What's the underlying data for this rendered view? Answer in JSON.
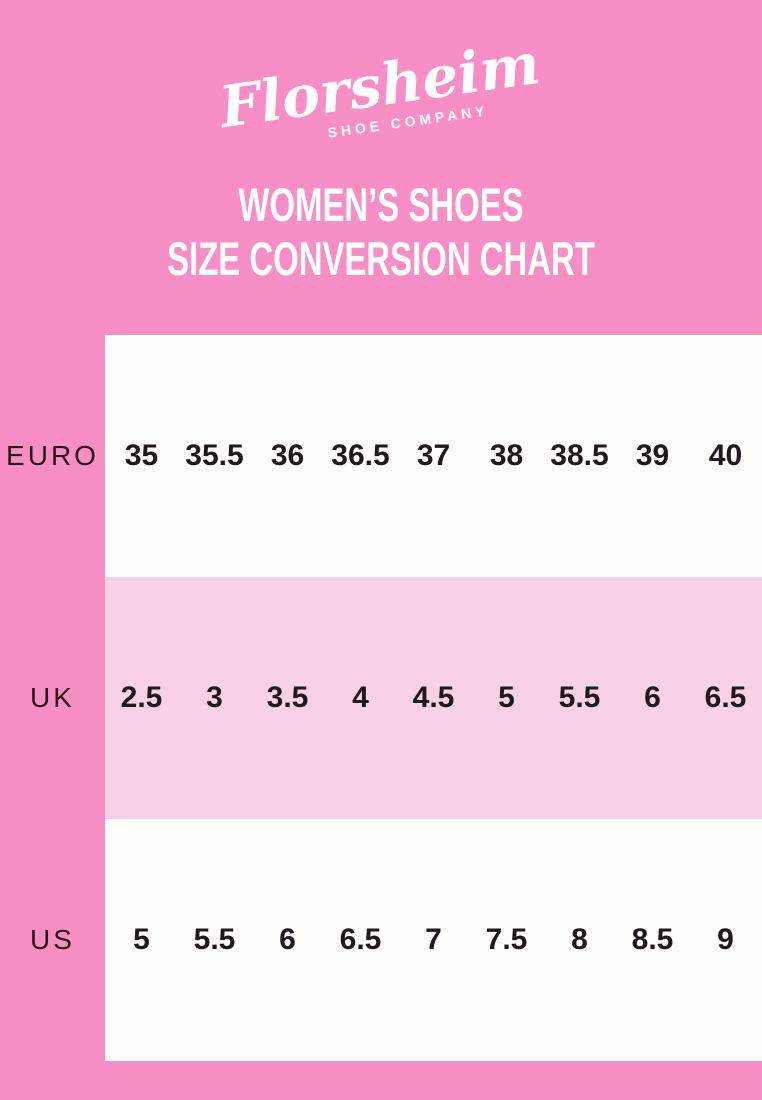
{
  "page": {
    "background_color": "#f78fc5"
  },
  "logo": {
    "brand": "Florsheim",
    "subtitle": "SHOE COMPANY",
    "color": "#ffffff"
  },
  "title": {
    "line1": "WOMEN’S SHOES",
    "line2": "SIZE CONVERSION CHART",
    "color": "#ffffff"
  },
  "chart_data": {
    "type": "table",
    "title": "Women’s Shoes Size Conversion Chart",
    "row_headers": [
      "EURO",
      "UK",
      "US"
    ],
    "rows": [
      {
        "label": "EURO",
        "values": [
          "35",
          "35.5",
          "36",
          "36.5",
          "37",
          "38",
          "38.5",
          "39",
          "40"
        ],
        "background": "#fdfdfb"
      },
      {
        "label": "UK",
        "values": [
          "2.5",
          "3",
          "3.5",
          "4",
          "4.5",
          "5",
          "5.5",
          "6",
          "6.5"
        ],
        "background": "#f9d1e7"
      },
      {
        "label": "US",
        "values": [
          "5",
          "5.5",
          "6",
          "6.5",
          "7",
          "7.5",
          "8",
          "8.5",
          "9"
        ],
        "background": "#fdfdfb"
      }
    ],
    "text_color": "#1f191d",
    "label_color": "#29161f"
  }
}
